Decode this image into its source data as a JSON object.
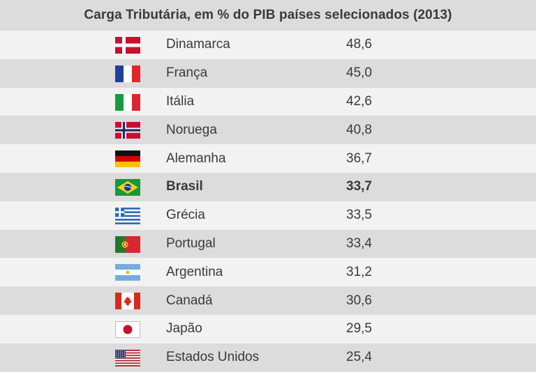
{
  "chart_data": {
    "type": "table",
    "title": "Carga Tributária, em % do PIB países selecionados (2013)",
    "columns": [
      "",
      "",
      ""
    ],
    "rows": [
      {
        "flag": "denmark-flag-icon",
        "country": "Dinamarca",
        "value": "48,6",
        "highlight": false
      },
      {
        "flag": "france-flag-icon",
        "country": "França",
        "value": "45,0",
        "highlight": false
      },
      {
        "flag": "italy-flag-icon",
        "country": "Itália",
        "value": "42,6",
        "highlight": false
      },
      {
        "flag": "norway-flag-icon",
        "country": "Noruega",
        "value": "40,8",
        "highlight": false
      },
      {
        "flag": "germany-flag-icon",
        "country": "Alemanha",
        "value": "36,7",
        "highlight": false
      },
      {
        "flag": "brazil-flag-icon",
        "country": "Brasil",
        "value": "33,7",
        "highlight": true
      },
      {
        "flag": "greece-flag-icon",
        "country": "Grécia",
        "value": "33,5",
        "highlight": false
      },
      {
        "flag": "portugal-flag-icon",
        "country": "Portugal",
        "value": "33,4",
        "highlight": false
      },
      {
        "flag": "argentina-flag-icon",
        "country": "Argentina",
        "value": "31,2",
        "highlight": false
      },
      {
        "flag": "canada-flag-icon",
        "country": "Canadá",
        "value": "30,6",
        "highlight": false
      },
      {
        "flag": "japan-flag-icon",
        "country": "Japão",
        "value": "29,5",
        "highlight": false
      },
      {
        "flag": "usa-flag-icon",
        "country": "Estados Unidos",
        "value": "25,4",
        "highlight": false
      }
    ],
    "colors": {
      "header_bg": "#dcdcdc",
      "row_light": "#f2f2f2",
      "row_dark": "#dcdcdc",
      "text": "#3a3a3a"
    }
  }
}
